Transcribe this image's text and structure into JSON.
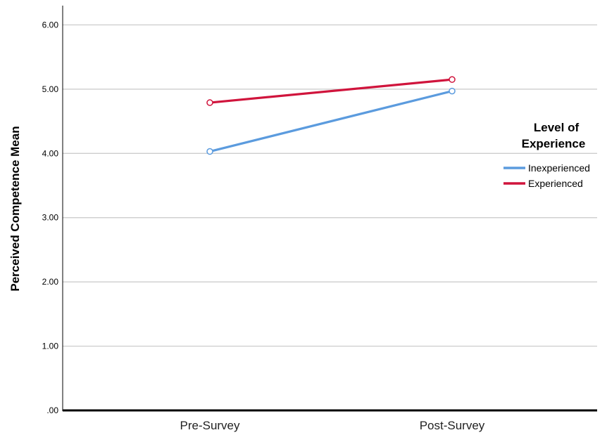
{
  "chart_data": {
    "type": "line",
    "categories": [
      "Pre-Survey",
      "Post-Survey"
    ],
    "series": [
      {
        "name": "Inexperienced",
        "values": [
          4.03,
          4.97
        ],
        "color": "#5b9bde"
      },
      {
        "name": "Experienced",
        "values": [
          4.79,
          5.15
        ],
        "color": "#d0143c"
      }
    ],
    "ylabel": "Perceived Competence Mean",
    "xlabel": "",
    "ylim": [
      0,
      6.3
    ],
    "yticks": [
      0,
      1,
      2,
      3,
      4,
      5,
      6
    ],
    "ytick_labels": [
      ".00",
      "1.00",
      "2.00",
      "3.00",
      "4.00",
      "5.00",
      "6.00"
    ],
    "grid": true,
    "legend": {
      "title_line1": "Level of",
      "title_line2": "Experience",
      "placement": "right"
    },
    "markers": "open-circle"
  }
}
